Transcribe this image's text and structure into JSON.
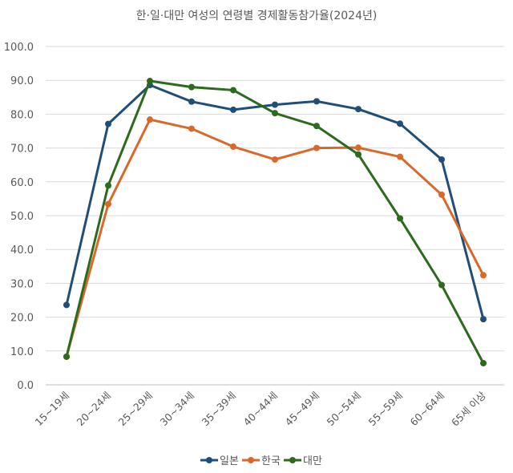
{
  "chart_data": {
    "type": "line",
    "title": "한·일·대만 여성의 연령별 경제활동참가율(2024년)",
    "categories": [
      "15~19세",
      "20~24세",
      "25~29세",
      "30~34세",
      "35~39세",
      "40~44세",
      "45~49세",
      "50~54세",
      "55~59세",
      "60~64세",
      "65세 이상"
    ],
    "ylim": [
      0,
      100
    ],
    "yticks": [
      "0.0",
      "10.0",
      "20.0",
      "30.0",
      "40.0",
      "50.0",
      "60.0",
      "70.0",
      "80.0",
      "90.0",
      "100.0"
    ],
    "grid": true,
    "legend_position": "bottom",
    "series": [
      {
        "name": "일본",
        "color": "#1f4e79",
        "values": [
          23.6,
          77.1,
          88.6,
          83.7,
          81.3,
          82.8,
          83.8,
          81.5,
          77.2,
          66.6,
          19.4
        ]
      },
      {
        "name": "한국",
        "color": "#d9692b",
        "values": [
          8.3,
          53.4,
          78.4,
          75.7,
          70.4,
          66.6,
          70.0,
          70.1,
          67.4,
          56.2,
          32.4
        ]
      },
      {
        "name": "대만",
        "color": "#2d6a1e",
        "values": [
          8.3,
          58.9,
          89.8,
          88.0,
          87.1,
          80.3,
          76.5,
          68.1,
          49.2,
          29.5,
          6.4
        ]
      }
    ]
  }
}
